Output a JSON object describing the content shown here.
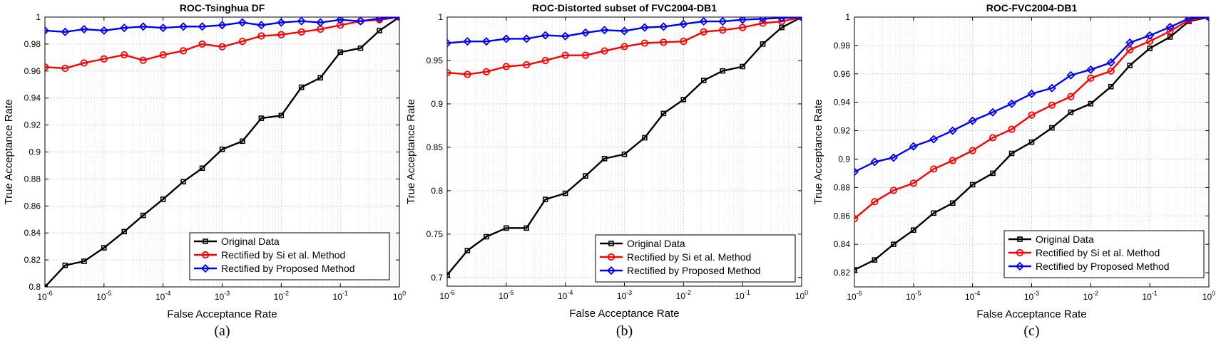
{
  "chart_data": [
    {
      "type": "line",
      "panel": "a",
      "caption": "(a)",
      "title": "ROC-Tsinghua DF",
      "xlabel": "False Acceptance Rate",
      "ylabel": "True Acceptance Rate",
      "xscale": "log",
      "xlim_exp": [
        -6,
        0
      ],
      "ylim": [
        0.8,
        1.0
      ],
      "yticks": [
        0.8,
        0.82,
        0.84,
        0.86,
        0.88,
        0.9,
        0.92,
        0.94,
        0.96,
        0.98,
        1.0
      ],
      "ytick_labels": [
        "0.8",
        "0.82",
        "0.84",
        "0.86",
        "0.88",
        "0.9",
        "0.92",
        "0.94",
        "0.96",
        "0.98",
        "1"
      ],
      "xticks_exp": [
        -6,
        -5,
        -4,
        -3,
        -2,
        -1,
        0
      ],
      "xticks_base": "10",
      "xticks_exp_labels": [
        "-6",
        "-5",
        "-4",
        "-3",
        "-2",
        "-1",
        "0"
      ],
      "grid": true,
      "legend_position": "bottom-right",
      "x": [
        1e-06,
        2.2e-06,
        4.6e-06,
        1e-05,
        2.2e-05,
        4.6e-05,
        0.0001,
        0.00022,
        0.00046,
        0.001,
        0.0022,
        0.0046,
        0.01,
        0.022,
        0.046,
        0.1,
        0.22,
        0.46,
        1
      ],
      "series": [
        {
          "name": "Original Data",
          "color": "#000000",
          "marker": "square",
          "values": [
            0.8,
            0.816,
            0.819,
            0.829,
            0.841,
            0.853,
            0.865,
            0.878,
            0.888,
            0.902,
            0.908,
            0.925,
            0.927,
            0.948,
            0.955,
            0.974,
            0.977,
            0.99,
            1.0
          ]
        },
        {
          "name": "Rectified by Si et al. Method",
          "color": "#ff0000",
          "marker": "circle",
          "values": [
            0.963,
            0.962,
            0.966,
            0.969,
            0.972,
            0.968,
            0.972,
            0.975,
            0.98,
            0.978,
            0.982,
            0.986,
            0.987,
            0.989,
            0.991,
            0.994,
            0.997,
            0.998,
            1.0
          ]
        },
        {
          "name": "Rectified by Proposed Method",
          "color": "#0000ff",
          "marker": "diamond",
          "values": [
            0.99,
            0.989,
            0.991,
            0.99,
            0.992,
            0.993,
            0.992,
            0.993,
            0.993,
            0.994,
            0.996,
            0.994,
            0.996,
            0.997,
            0.996,
            0.998,
            0.997,
            0.999,
            1.0
          ]
        }
      ]
    },
    {
      "type": "line",
      "panel": "b",
      "caption": "(b)",
      "title": "ROC-Distorted subset of FVC2004-DB1",
      "xlabel": "False Acceptance Rate",
      "ylabel": "True Acceptance Rate",
      "xscale": "log",
      "xlim_exp": [
        -6,
        0
      ],
      "ylim": [
        0.69,
        1.0
      ],
      "yticks": [
        0.7,
        0.75,
        0.8,
        0.85,
        0.9,
        0.95,
        1.0
      ],
      "ytick_labels": [
        "0.7",
        "0.75",
        "0.8",
        "0.85",
        "0.9",
        "0.95",
        "1"
      ],
      "xticks_exp": [
        -6,
        -5,
        -4,
        -3,
        -2,
        -1,
        0
      ],
      "xticks_base": "10",
      "xticks_exp_labels": [
        "-6",
        "-5",
        "-4",
        "-3",
        "-2",
        "-1",
        "0"
      ],
      "grid": true,
      "legend_position": "bottom-right",
      "x": [
        1e-06,
        2.2e-06,
        4.6e-06,
        1e-05,
        2.2e-05,
        4.6e-05,
        0.0001,
        0.00022,
        0.00046,
        0.001,
        0.0022,
        0.0046,
        0.01,
        0.022,
        0.046,
        0.1,
        0.22,
        0.46,
        1
      ],
      "series": [
        {
          "name": "Original Data",
          "color": "#000000",
          "marker": "square",
          "values": [
            0.703,
            0.731,
            0.747,
            0.757,
            0.757,
            0.79,
            0.797,
            0.817,
            0.837,
            0.842,
            0.861,
            0.889,
            0.905,
            0.927,
            0.938,
            0.943,
            0.969,
            0.988,
            1.0
          ]
        },
        {
          "name": "Rectified by Si et al. Method",
          "color": "#ff0000",
          "marker": "circle",
          "values": [
            0.936,
            0.934,
            0.937,
            0.943,
            0.945,
            0.95,
            0.956,
            0.956,
            0.961,
            0.966,
            0.97,
            0.971,
            0.972,
            0.983,
            0.985,
            0.988,
            0.993,
            0.995,
            1.0
          ]
        },
        {
          "name": "Rectified by Proposed Method",
          "color": "#0000ff",
          "marker": "diamond",
          "values": [
            0.97,
            0.972,
            0.972,
            0.975,
            0.975,
            0.979,
            0.978,
            0.982,
            0.985,
            0.984,
            0.988,
            0.989,
            0.992,
            0.995,
            0.995,
            0.997,
            0.998,
            0.999,
            1.0
          ]
        }
      ]
    },
    {
      "type": "line",
      "panel": "c",
      "caption": "(c)",
      "title": "ROC-FVC2004-DB1",
      "xlabel": "False Acceptance Rate",
      "ylabel": "True Acceptance Rate",
      "xscale": "log",
      "xlim_exp": [
        -6,
        0
      ],
      "ylim": [
        0.81,
        1.0
      ],
      "yticks": [
        0.82,
        0.84,
        0.86,
        0.88,
        0.9,
        0.92,
        0.94,
        0.96,
        0.98,
        1.0
      ],
      "ytick_labels": [
        "0.82",
        "0.84",
        "0.86",
        "0.88",
        "0.9",
        "0.92",
        "0.94",
        "0.96",
        "0.98",
        "1"
      ],
      "xticks_exp": [
        -6,
        -5,
        -4,
        -3,
        -2,
        -1,
        0
      ],
      "xticks_base": "10",
      "xticks_exp_labels": [
        "-6",
        "-5",
        "-4",
        "-3",
        "-2",
        "-1",
        "0"
      ],
      "grid": true,
      "legend_position": "bottom-right",
      "x": [
        1e-06,
        2.2e-06,
        4.6e-06,
        1e-05,
        2.2e-05,
        4.6e-05,
        0.0001,
        0.00022,
        0.00046,
        0.001,
        0.0022,
        0.0046,
        0.01,
        0.022,
        0.046,
        0.1,
        0.22,
        0.46,
        1
      ],
      "series": [
        {
          "name": "Original Data",
          "color": "#000000",
          "marker": "square",
          "values": [
            0.822,
            0.829,
            0.84,
            0.85,
            0.862,
            0.869,
            0.882,
            0.89,
            0.904,
            0.912,
            0.922,
            0.933,
            0.939,
            0.951,
            0.966,
            0.978,
            0.986,
            0.997,
            1.0
          ]
        },
        {
          "name": "Rectified by Si et al. Method",
          "color": "#ff0000",
          "marker": "circle",
          "values": [
            0.858,
            0.87,
            0.878,
            0.883,
            0.893,
            0.899,
            0.906,
            0.915,
            0.921,
            0.931,
            0.938,
            0.944,
            0.957,
            0.962,
            0.977,
            0.983,
            0.99,
            0.998,
            1.0
          ]
        },
        {
          "name": "Rectified by Proposed Method",
          "color": "#0000ff",
          "marker": "diamond",
          "values": [
            0.891,
            0.898,
            0.901,
            0.909,
            0.914,
            0.92,
            0.927,
            0.933,
            0.939,
            0.946,
            0.95,
            0.959,
            0.963,
            0.968,
            0.982,
            0.987,
            0.993,
            0.999,
            1.0
          ]
        }
      ]
    }
  ]
}
